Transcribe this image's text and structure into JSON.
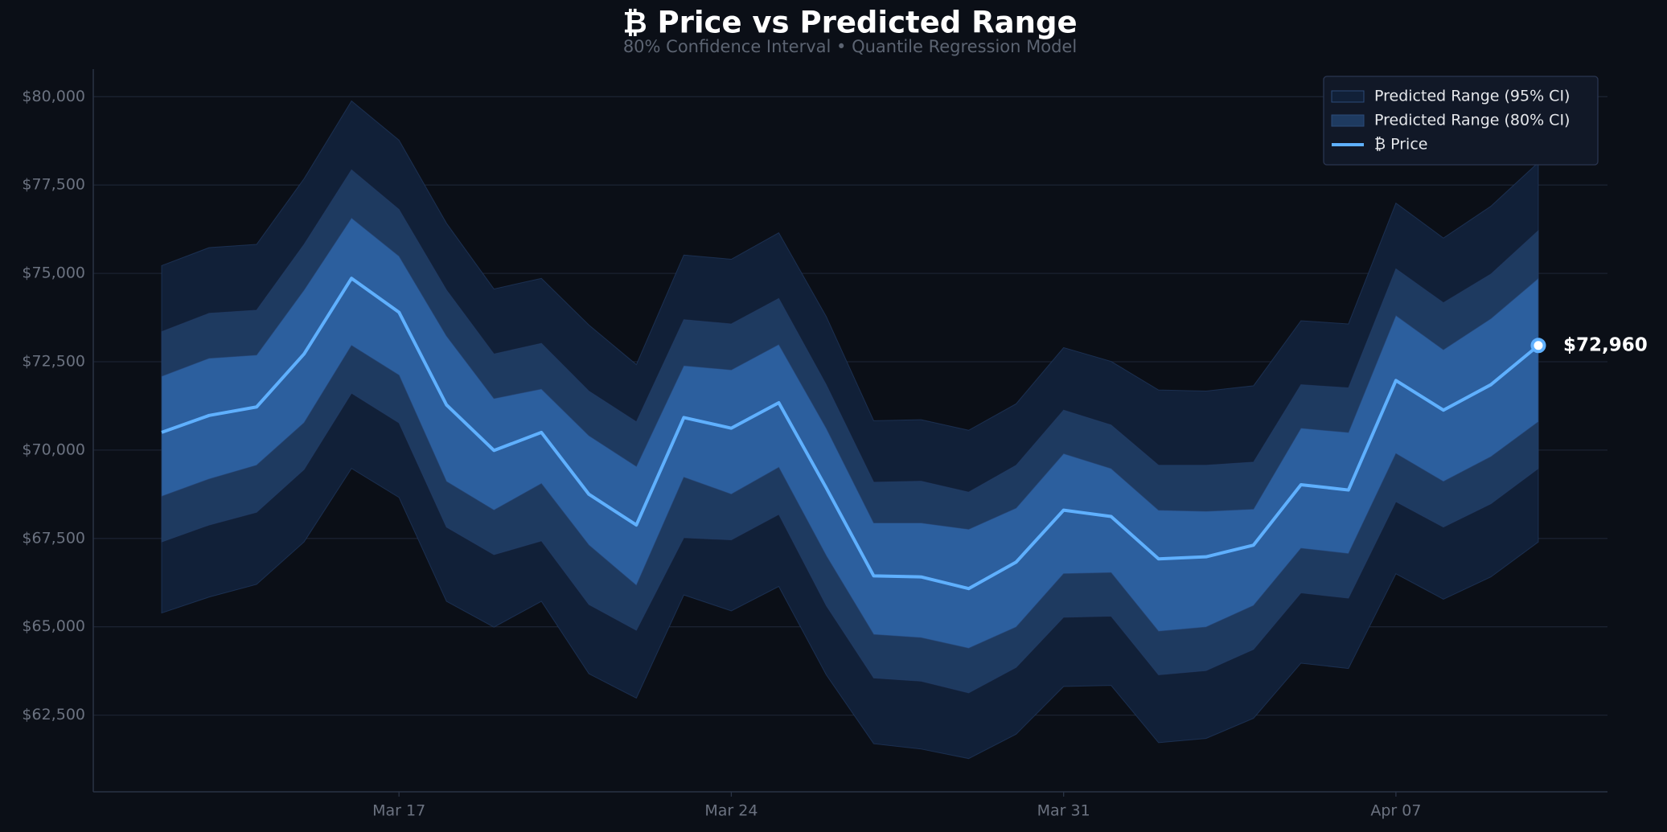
{
  "chart_data": {
    "type": "band-line",
    "title": "₿ Price vs Predicted Range",
    "subtitle": "80% Confidence Interval  •  Quantile Regression Model",
    "categories": [
      null,
      null,
      null,
      null,
      null,
      "Mar 17",
      null,
      null,
      null,
      null,
      null,
      null,
      "Mar 24",
      null,
      null,
      null,
      null,
      null,
      null,
      "Mar 31",
      null,
      null,
      null,
      null,
      null,
      null,
      "Apr 07",
      null,
      null,
      null
    ],
    "ylim": [
      60330,
      80780
    ],
    "yticks": [
      {
        "value": 62500,
        "label": "$62,500"
      },
      {
        "value": 65000,
        "label": "$65,000"
      },
      {
        "value": 67500,
        "label": "$67,500"
      },
      {
        "value": 70000,
        "label": "$70,000"
      },
      {
        "value": 72500,
        "label": "$72,500"
      },
      {
        "value": 75000,
        "label": "$75,000"
      },
      {
        "value": 77500,
        "label": "$77,500"
      },
      {
        "value": 80000,
        "label": "$80,000"
      }
    ],
    "grid": true,
    "legend": "upper right",
    "bands": [
      {
        "name": "Predicted Range (95% CI)",
        "color": "#112038",
        "upper": [
          75220,
          75730,
          75820,
          77680,
          79880,
          78770,
          76420,
          74560,
          74860,
          73540,
          72420,
          75520,
          75400,
          76150,
          73780,
          70830,
          70860,
          70560,
          71310,
          72900,
          72510,
          71700,
          71670,
          71820,
          73660,
          73570,
          76990,
          76000,
          76900,
          78140
        ],
        "lower": [
          65390,
          65840,
          66200,
          67400,
          69480,
          68660,
          65720,
          64990,
          65720,
          63670,
          62980,
          65900,
          65450,
          66140,
          63640,
          61690,
          61540,
          61270,
          61960,
          63310,
          63340,
          61720,
          61840,
          62410,
          63970,
          63820,
          66500,
          65780,
          66410,
          67400
        ]
      },
      {
        "name": "Predicted Range (80% CI)",
        "color": "#1e3a60",
        "upper": [
          73350,
          73870,
          73960,
          75820,
          77930,
          76810,
          74530,
          72720,
          73020,
          71670,
          70800,
          73690,
          73570,
          74290,
          71850,
          69090,
          69120,
          68810,
          69570,
          71130,
          70710,
          69570,
          69570,
          69660,
          71850,
          71760,
          75130,
          74170,
          74980,
          76210
        ],
        "lower": [
          67400,
          67880,
          68240,
          69450,
          71610,
          70770,
          67820,
          67040,
          67430,
          65630,
          64900,
          67520,
          67460,
          68180,
          65600,
          63550,
          63460,
          63130,
          63850,
          65270,
          65300,
          63640,
          63760,
          64360,
          65960,
          65810,
          68540,
          67820,
          68480,
          69480
        ]
      },
      {
        "color": "#2c5f9e",
        "upper": [
          72090,
          72600,
          72690,
          74530,
          76570,
          75490,
          73230,
          71460,
          71730,
          70410,
          69540,
          72390,
          72270,
          72990,
          70620,
          67940,
          67940,
          67760,
          68360,
          69900,
          69480,
          68300,
          68270,
          68330,
          70620,
          70500,
          73810,
          72840,
          73720,
          74860
        ],
        "lower": [
          68690,
          69180,
          69570,
          70770,
          72960,
          72120,
          69110,
          68300,
          69050,
          67310,
          66170,
          69230,
          68750,
          69510,
          67010,
          64780,
          64690,
          64390,
          64990,
          66500,
          66530,
          64870,
          64990,
          65600,
          67220,
          67070,
          69900,
          69110,
          69810,
          70800
        ]
      }
    ],
    "series": [
      {
        "name": "₿ Price",
        "color": "#5fb0ff",
        "values": [
          70500,
          70980,
          71220,
          72720,
          74860,
          73900,
          71280,
          69990,
          70500,
          68750,
          67880,
          70920,
          70620,
          71340,
          68930,
          66440,
          66410,
          66080,
          66830,
          68300,
          68120,
          66920,
          66980,
          67310,
          69020,
          68870,
          71970,
          71130,
          71850,
          72960
        ],
        "value_labels": [
          null,
          null,
          null,
          null,
          null,
          null,
          null,
          null,
          null,
          null,
          null,
          null,
          null,
          null,
          null,
          null,
          null,
          null,
          null,
          null,
          null,
          null,
          null,
          null,
          null,
          null,
          null,
          null,
          null,
          "$72,960"
        ]
      }
    ]
  }
}
